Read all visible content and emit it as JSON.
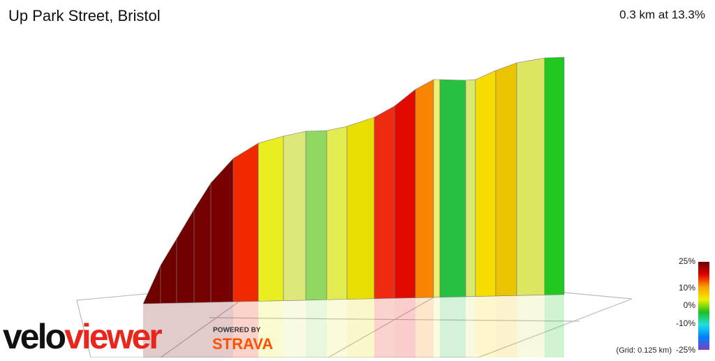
{
  "header": {
    "title": "Up Park Street, Bristol",
    "summary": "0.3 km at 13.3%"
  },
  "profile": {
    "colors": [
      "#6e0000",
      "#700000",
      "#720000",
      "#750000",
      "#780000",
      "#f02a00",
      "#e8ee20",
      "#dde77a",
      "#90d860",
      "#e2ec50",
      "#e8de00",
      "#ee2a10",
      "#e00a00",
      "#f88400",
      "#f0f070",
      "#28c040",
      "#d8e870",
      "#f6dc00",
      "#eac400",
      "#dce660",
      "#20c820"
    ]
  },
  "legend": {
    "labels": [
      "25%",
      "10%",
      "0%",
      "-10%",
      "-25%"
    ],
    "colors": [
      "#6a0000",
      "#e00000",
      "#f8a000",
      "#f0f000",
      "#20c020",
      "#20e0e0",
      "#0080ff",
      "#8040c0"
    ],
    "grid_note": "(Grid: 0.125 km)"
  },
  "branding": {
    "logo_a": "velo",
    "logo_b": "viewer",
    "powered": "POWERED BY",
    "strava": "STRAVA"
  }
}
